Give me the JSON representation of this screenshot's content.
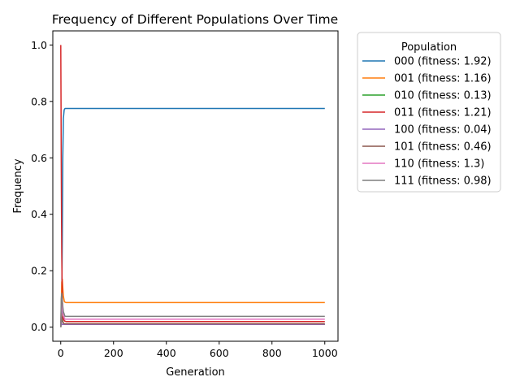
{
  "chart_data": {
    "type": "line",
    "title": "Frequency of Different Populations Over Time",
    "xlabel": "Generation",
    "ylabel": "Frequency",
    "xlim": [
      -30,
      1050
    ],
    "ylim": [
      -0.05,
      1.05
    ],
    "xticks": [
      0,
      200,
      400,
      600,
      800,
      1000
    ],
    "yticks": [
      0.0,
      0.2,
      0.4,
      0.6,
      0.8,
      1.0
    ],
    "xtick_labels": [
      "0",
      "200",
      "400",
      "600",
      "800",
      "1000"
    ],
    "ytick_labels": [
      "0.0",
      "0.2",
      "0.4",
      "0.6",
      "0.8",
      "1.0"
    ],
    "grid": false,
    "legend": {
      "title": "Population",
      "placement": "outside-right"
    },
    "series": [
      {
        "name": "000 (fitness: 1.92)",
        "color": "#1f77b4",
        "x": [
          0,
          2,
          4,
          6,
          8,
          10,
          13,
          16,
          20,
          1000
        ],
        "y": [
          0.0,
          0.02,
          0.1,
          0.32,
          0.6,
          0.74,
          0.77,
          0.775,
          0.775,
          0.775
        ]
      },
      {
        "name": "001 (fitness: 1.16)",
        "color": "#ff7f0e",
        "x": [
          0,
          2,
          4,
          6,
          8,
          10,
          14,
          20,
          1000
        ],
        "y": [
          0.0,
          0.08,
          0.16,
          0.17,
          0.14,
          0.11,
          0.09,
          0.087,
          0.087
        ]
      },
      {
        "name": "010 (fitness: 0.13)",
        "color": "#2ca02c",
        "x": [
          0,
          2,
          4,
          8,
          1000
        ],
        "y": [
          0.0,
          0.03,
          0.01,
          0.01,
          0.01
        ]
      },
      {
        "name": "011 (fitness: 1.21)",
        "color": "#d62728",
        "x": [
          0,
          1,
          2,
          3,
          4,
          5,
          6,
          8,
          10,
          14,
          20,
          1000
        ],
        "y": [
          1.0,
          0.8,
          0.58,
          0.4,
          0.26,
          0.16,
          0.1,
          0.05,
          0.03,
          0.022,
          0.02,
          0.02
        ]
      },
      {
        "name": "100 (fitness: 0.04)",
        "color": "#9467bd",
        "x": [
          0,
          2,
          4,
          8,
          1000
        ],
        "y": [
          0.0,
          0.02,
          0.01,
          0.01,
          0.01
        ]
      },
      {
        "name": "101 (fitness: 0.46)",
        "color": "#8c564b",
        "x": [
          0,
          2,
          4,
          8,
          12,
          1000
        ],
        "y": [
          0.0,
          0.05,
          0.04,
          0.02,
          0.012,
          0.012
        ]
      },
      {
        "name": "110 (fitness: 1.3)",
        "color": "#e377c2",
        "x": [
          0,
          2,
          4,
          6,
          10,
          16,
          1000
        ],
        "y": [
          0.0,
          0.07,
          0.08,
          0.06,
          0.04,
          0.028,
          0.028
        ]
      },
      {
        "name": "111 (fitness: 0.98)",
        "color": "#7f7f7f",
        "x": [
          0,
          2,
          4,
          6,
          10,
          16,
          1000
        ],
        "y": [
          0.0,
          0.1,
          0.12,
          0.09,
          0.055,
          0.038,
          0.038
        ]
      }
    ]
  }
}
